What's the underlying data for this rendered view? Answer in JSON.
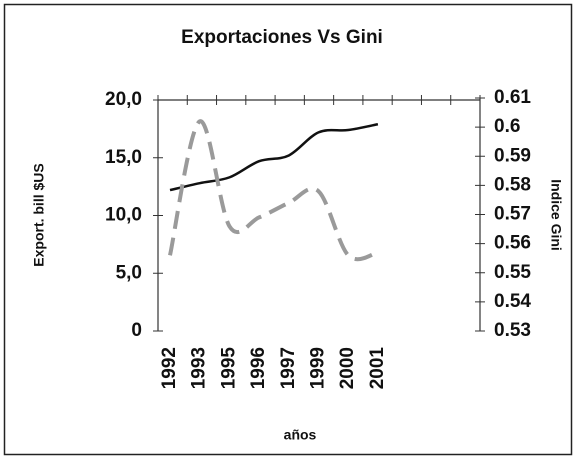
{
  "chart_data": {
    "type": "line",
    "title": "Exportaciones Vs Gini",
    "x_label": "años",
    "y_label": "Export. bill $US",
    "y2_label": "Indice Gini",
    "categories": [
      "1992",
      "1993",
      "1995",
      "1996",
      "1997",
      "1999",
      "2000",
      "2001"
    ],
    "series": [
      {
        "color": "#111111",
        "dashed": false,
        "values": [
          12.2,
          12.8,
          13.3,
          14.7,
          15.2,
          17.2,
          17.4,
          17.9
        ]
      },
      {
        "color": "#9a9a9a",
        "dashed": true,
        "axis": "y2",
        "values": [
          0.556,
          0.602,
          0.566,
          0.569,
          0.574,
          0.578,
          0.556,
          0.557
        ]
      }
    ],
    "ylim": [
      0,
      20
    ],
    "yticks": [
      {
        "value": 0,
        "label": "0"
      },
      {
        "value": 5,
        "label": "5,0"
      },
      {
        "value": 10,
        "label": "10,0"
      },
      {
        "value": 15,
        "label": "15,0"
      },
      {
        "value": 20,
        "label": "20,0"
      }
    ],
    "y2lim": [
      0.53,
      0.61
    ],
    "y2ticks": [
      0.53,
      0.54,
      0.55,
      0.56,
      0.57,
      0.58,
      0.59,
      0.6,
      0.61
    ]
  }
}
